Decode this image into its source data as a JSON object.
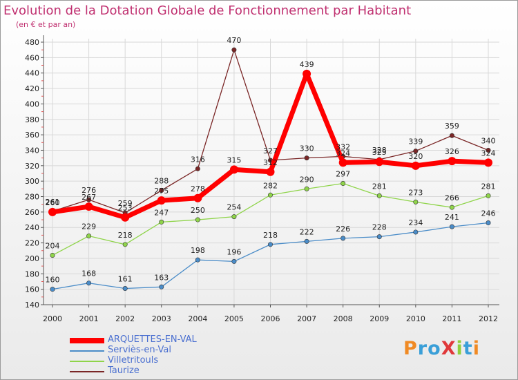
{
  "header": {
    "title": "Evolution de la Dotation Globale de Fonctionnement par Habitant",
    "subtitle": "(en € et par an)"
  },
  "brand": "ProXiti",
  "colors": {
    "title": "#c03070",
    "legend_text": "#4a6fd0",
    "gridline": "#d8d8d8"
  },
  "chart_data": {
    "type": "line",
    "title": "Evolution de la Dotation Globale de Fonctionnement par Habitant",
    "subtitle": "(en € et par an)",
    "x": [
      2000,
      2001,
      2002,
      2003,
      2004,
      2005,
      2006,
      2007,
      2008,
      2009,
      2010,
      2011,
      2012
    ],
    "ylim": [
      140,
      480
    ],
    "yticks": [
      140,
      160,
      180,
      200,
      220,
      240,
      260,
      280,
      300,
      320,
      340,
      360,
      380,
      400,
      420,
      440,
      460,
      480
    ],
    "grid": true,
    "legend_position": "bottom-left",
    "series": [
      {
        "name": "ARQUETTES-EN-VAL",
        "color": "#ff0000",
        "emphasis": true,
        "values": [
          260,
          267,
          253,
          275,
          278,
          315,
          312,
          439,
          324,
          325,
          320,
          326,
          324
        ]
      },
      {
        "name": "Serviès-en-Val",
        "color": "#4a8cc8",
        "emphasis": false,
        "values": [
          160,
          168,
          161,
          163,
          198,
          196,
          218,
          222,
          226,
          228,
          234,
          241,
          246
        ]
      },
      {
        "name": "Villetritouls",
        "color": "#8fd44a",
        "emphasis": false,
        "values": [
          204,
          229,
          218,
          247,
          250,
          254,
          282,
          290,
          297,
          281,
          273,
          266,
          281
        ]
      },
      {
        "name": "Taurize",
        "color": "#7a2626",
        "emphasis": false,
        "values": [
          261,
          276,
          259,
          288,
          316,
          470,
          327,
          330,
          332,
          328,
          339,
          359,
          340
        ]
      }
    ]
  }
}
